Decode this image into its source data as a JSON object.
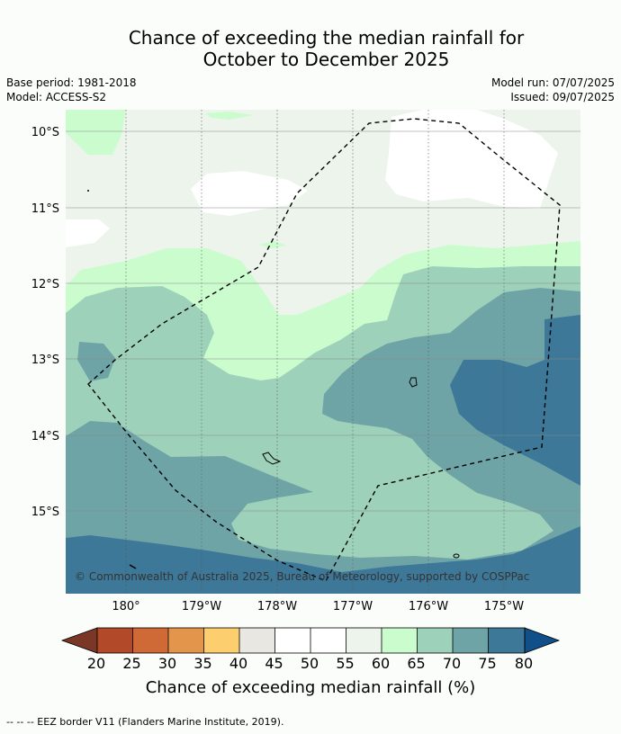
{
  "title_line1": "Chance of exceeding the median rainfall for",
  "title_line2": "October to December 2025",
  "meta": {
    "base_period": "Base period: 1981-2018",
    "model": "Model: ACCESS-S2",
    "model_run": "Model run: 07/07/2025",
    "issued": "Issued: 09/07/2025"
  },
  "copyright": "© Commonwealth of Australia 2025, Bureau of Meteorology, supported by COSPPac",
  "lat_labels": [
    "10°S",
    "11°S",
    "12°S",
    "13°S",
    "14°S",
    "15°S"
  ],
  "lon_labels": [
    "180°",
    "179°W",
    "178°W",
    "177°W",
    "176°W",
    "175°W"
  ],
  "colorbar": {
    "ticks": [
      "20",
      "25",
      "30",
      "35",
      "40",
      "45",
      "50",
      "55",
      "60",
      "65",
      "70",
      "75",
      "80"
    ],
    "label": "Chance of exceeding median rainfall (%)",
    "colors": [
      "#7b3726",
      "#b24a2a",
      "#cf6935",
      "#e3964b",
      "#fdce6e",
      "#e9e7e2",
      "#ffffff",
      "#ffffff",
      "#ecf4ec",
      "#cbfccd",
      "#9ed1ba",
      "#6fa4a6",
      "#3d7898",
      "#114f88"
    ]
  },
  "legend_note": "--  --  -- EEZ border V11 (Flanders Marine Institute, 2019)."
}
